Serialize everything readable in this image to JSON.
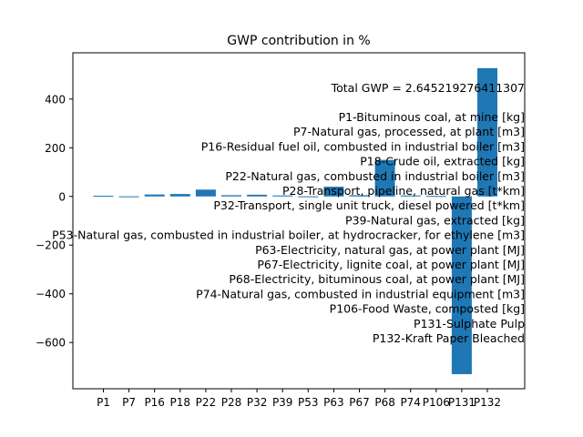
{
  "chart_data": {
    "type": "bar",
    "title": "GWP contribution in %",
    "xlabel": "",
    "ylabel": "",
    "categories": [
      "P1",
      "P7",
      "P16",
      "P18",
      "P22",
      "P28",
      "P32",
      "P39",
      "P53",
      "P63",
      "P67",
      "P68",
      "P74",
      "P106",
      "P131",
      "P132"
    ],
    "values": [
      3,
      0.5,
      8,
      10,
      28,
      5,
      7,
      4,
      0.5,
      40,
      5,
      150,
      4,
      2,
      -730,
      527
    ],
    "ylim": [
      -790,
      590
    ],
    "yticks": [
      -600,
      -400,
      -200,
      0,
      200,
      400
    ],
    "ytick_labels": [
      "−600",
      "−400",
      "−200",
      "0",
      "200",
      "400"
    ],
    "grid": false,
    "bar_color": "#1f77b4",
    "annotations": [
      "Total GWP = 2.645219276411307",
      "P1-Bituminous coal, at mine [kg]",
      "P7-Natural gas, processed, at plant [m3]",
      "P16-Residual fuel oil, combusted in industrial boiler [m3]",
      "P18-Crude oil, extracted [kg]",
      "P22-Natural gas, combusted in industrial boiler [m3]",
      "P28-Transport, pipeline, natural gas [t*km]",
      "P32-Transport, single unit truck, diesel powered [t*km]",
      "P39-Natural gas, extracted [kg]",
      "P53-Natural gas, combusted in industrial boiler, at hydrocracker, for ethylene [m3]",
      "P63-Electricity, natural gas, at power plant [MJ]",
      "P67-Electricity, lignite coal, at power plant [MJ]",
      "P68-Electricity, bituminous coal, at power plant [MJ]",
      "P74-Natural gas, combusted in industrial equipment [m3]",
      "P106-Food Waste, composted [kg]",
      "P131-Sulphate Pulp",
      "P132-Kraft Paper Bleached"
    ]
  }
}
